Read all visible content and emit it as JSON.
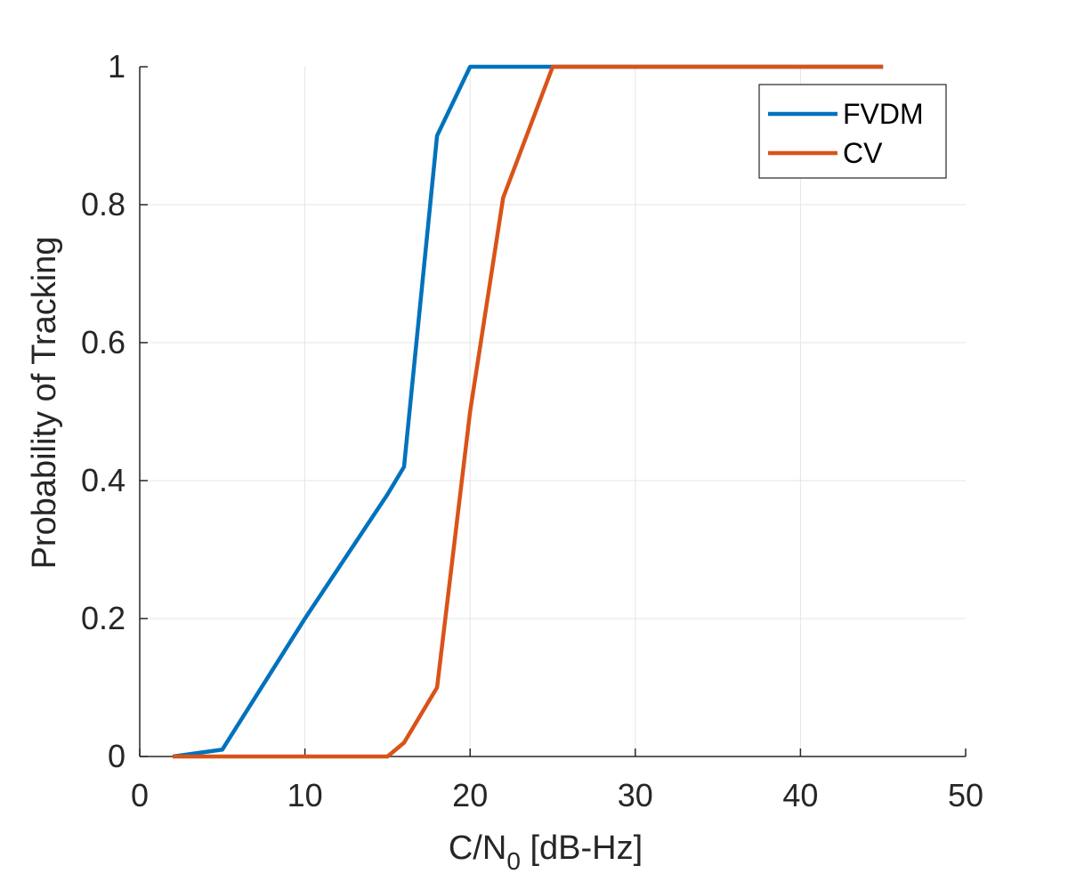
{
  "chart_data": {
    "type": "line",
    "title": "",
    "xlabel": {
      "main": "C/N",
      "sub": "0",
      "rest": " [dB-Hz]"
    },
    "ylabel": "Probability of Tracking",
    "xlim": [
      0,
      50
    ],
    "ylim": [
      0,
      1
    ],
    "xticks": [
      0,
      10,
      20,
      30,
      40,
      50
    ],
    "yticks": [
      0,
      0.2,
      0.4,
      0.6,
      0.8,
      1
    ],
    "xtick_labels": [
      "0",
      "10",
      "20",
      "30",
      "40",
      "50"
    ],
    "ytick_labels": [
      "0",
      "0.2",
      "0.4",
      "0.6",
      "0.8",
      "1"
    ],
    "grid": true,
    "legend": "top-right",
    "series": [
      {
        "name": "FVDM",
        "color": "#0072BD",
        "x": [
          2,
          5,
          10,
          15,
          16,
          18,
          20,
          25,
          30,
          35,
          40,
          45
        ],
        "y": [
          0,
          0.01,
          0.2,
          0.38,
          0.42,
          0.9,
          1,
          1,
          1,
          1,
          1,
          1
        ]
      },
      {
        "name": "CV",
        "color": "#D95319",
        "x": [
          2,
          5,
          10,
          15,
          16,
          18,
          20,
          22,
          25,
          30,
          35,
          40,
          45
        ],
        "y": [
          0,
          0,
          0,
          0,
          0.02,
          0.1,
          0.5,
          0.81,
          1,
          1,
          1,
          1,
          1
        ]
      }
    ]
  }
}
